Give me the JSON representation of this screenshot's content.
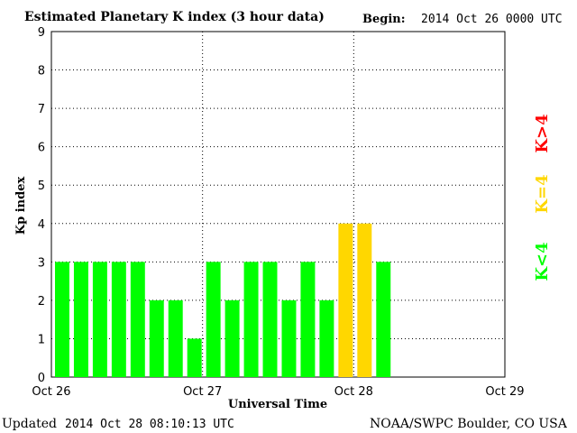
{
  "header": {
    "title": "Estimated Planetary K index (3 hour data)",
    "begin_label": "Begin:",
    "begin_value": "2014 Oct 26 0000 UTC"
  },
  "footer": {
    "updated_label": "Updated",
    "updated_value": "2014 Oct 28 08:10:13 UTC",
    "source": "NOAA/SWPC Boulder, CO USA"
  },
  "legend": [
    {
      "label": "K<4",
      "color": "#00ff00"
    },
    {
      "label": "K=4",
      "color": "#ffd700"
    },
    {
      "label": "K>4",
      "color": "#ff0000"
    }
  ],
  "chart_data": {
    "type": "bar",
    "title": "Estimated Planetary K index (3 hour data)",
    "xlabel": "Universal Time",
    "ylabel": "Kp index",
    "ylim": [
      0,
      9
    ],
    "yticks": [
      "0",
      "1",
      "2",
      "3",
      "4",
      "5",
      "6",
      "7",
      "8",
      "9"
    ],
    "xticks": [
      "Oct 26",
      "Oct 27",
      "Oct 28",
      "Oct 29"
    ],
    "interval_hours": 3,
    "values": [
      3,
      3,
      3,
      3,
      3,
      2,
      2,
      1,
      3,
      2,
      3,
      3,
      2,
      3,
      2,
      4,
      4,
      3
    ],
    "colors": {
      "below4": "#00ff00",
      "equal4": "#ffd700",
      "above4": "#ff0000"
    },
    "grid": true
  }
}
